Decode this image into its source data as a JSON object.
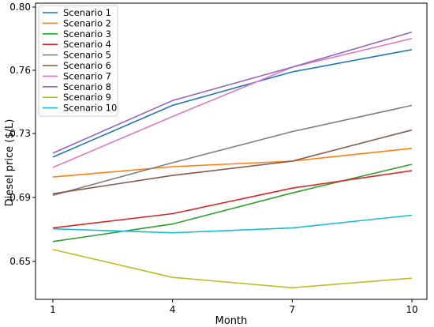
{
  "chart_data": {
    "type": "line",
    "xlabel": "Month",
    "ylabel": "Diesel price ($/L)",
    "x": [
      1,
      4,
      7,
      10
    ],
    "x_ticks": [
      "1",
      "4",
      "7",
      "10"
    ],
    "y_ticks": [
      "0.65",
      "0.69",
      "0.73",
      "0.76",
      "0.80"
    ],
    "legend_position": "top-left",
    "series": [
      {
        "name": "Scenario 1",
        "color": "#1f77b4",
        "values": [
          0.7155,
          0.748,
          0.769,
          0.783
        ]
      },
      {
        "name": "Scenario 2",
        "color": "#ff7f0e",
        "values": [
          0.703,
          0.7095,
          0.713,
          0.721
        ]
      },
      {
        "name": "Scenario 3",
        "color": "#2ca02c",
        "values": [
          0.6625,
          0.6735,
          0.693,
          0.711
        ]
      },
      {
        "name": "Scenario 4",
        "color": "#d62728",
        "values": [
          0.671,
          0.68,
          0.696,
          0.707
        ]
      },
      {
        "name": "Scenario 5",
        "color": "#7f7f7f",
        "values": [
          0.6915,
          0.712,
          0.7315,
          0.748
        ]
      },
      {
        "name": "Scenario 6",
        "color": "#8c564b",
        "values": [
          0.6925,
          0.704,
          0.713,
          0.7325
        ]
      },
      {
        "name": "Scenario 7",
        "color": "#e377c2",
        "values": [
          0.709,
          0.741,
          0.772,
          0.79
        ]
      },
      {
        "name": "Scenario 8",
        "color": "#9467bd",
        "values": [
          0.718,
          0.751,
          0.772,
          0.794
        ]
      },
      {
        "name": "Scenario 9",
        "color": "#bcbd22",
        "values": [
          0.6575,
          0.64,
          0.6335,
          0.6395
        ]
      },
      {
        "name": "Scenario 10",
        "color": "#17becf",
        "values": [
          0.6705,
          0.668,
          0.671,
          0.679
        ]
      }
    ]
  }
}
